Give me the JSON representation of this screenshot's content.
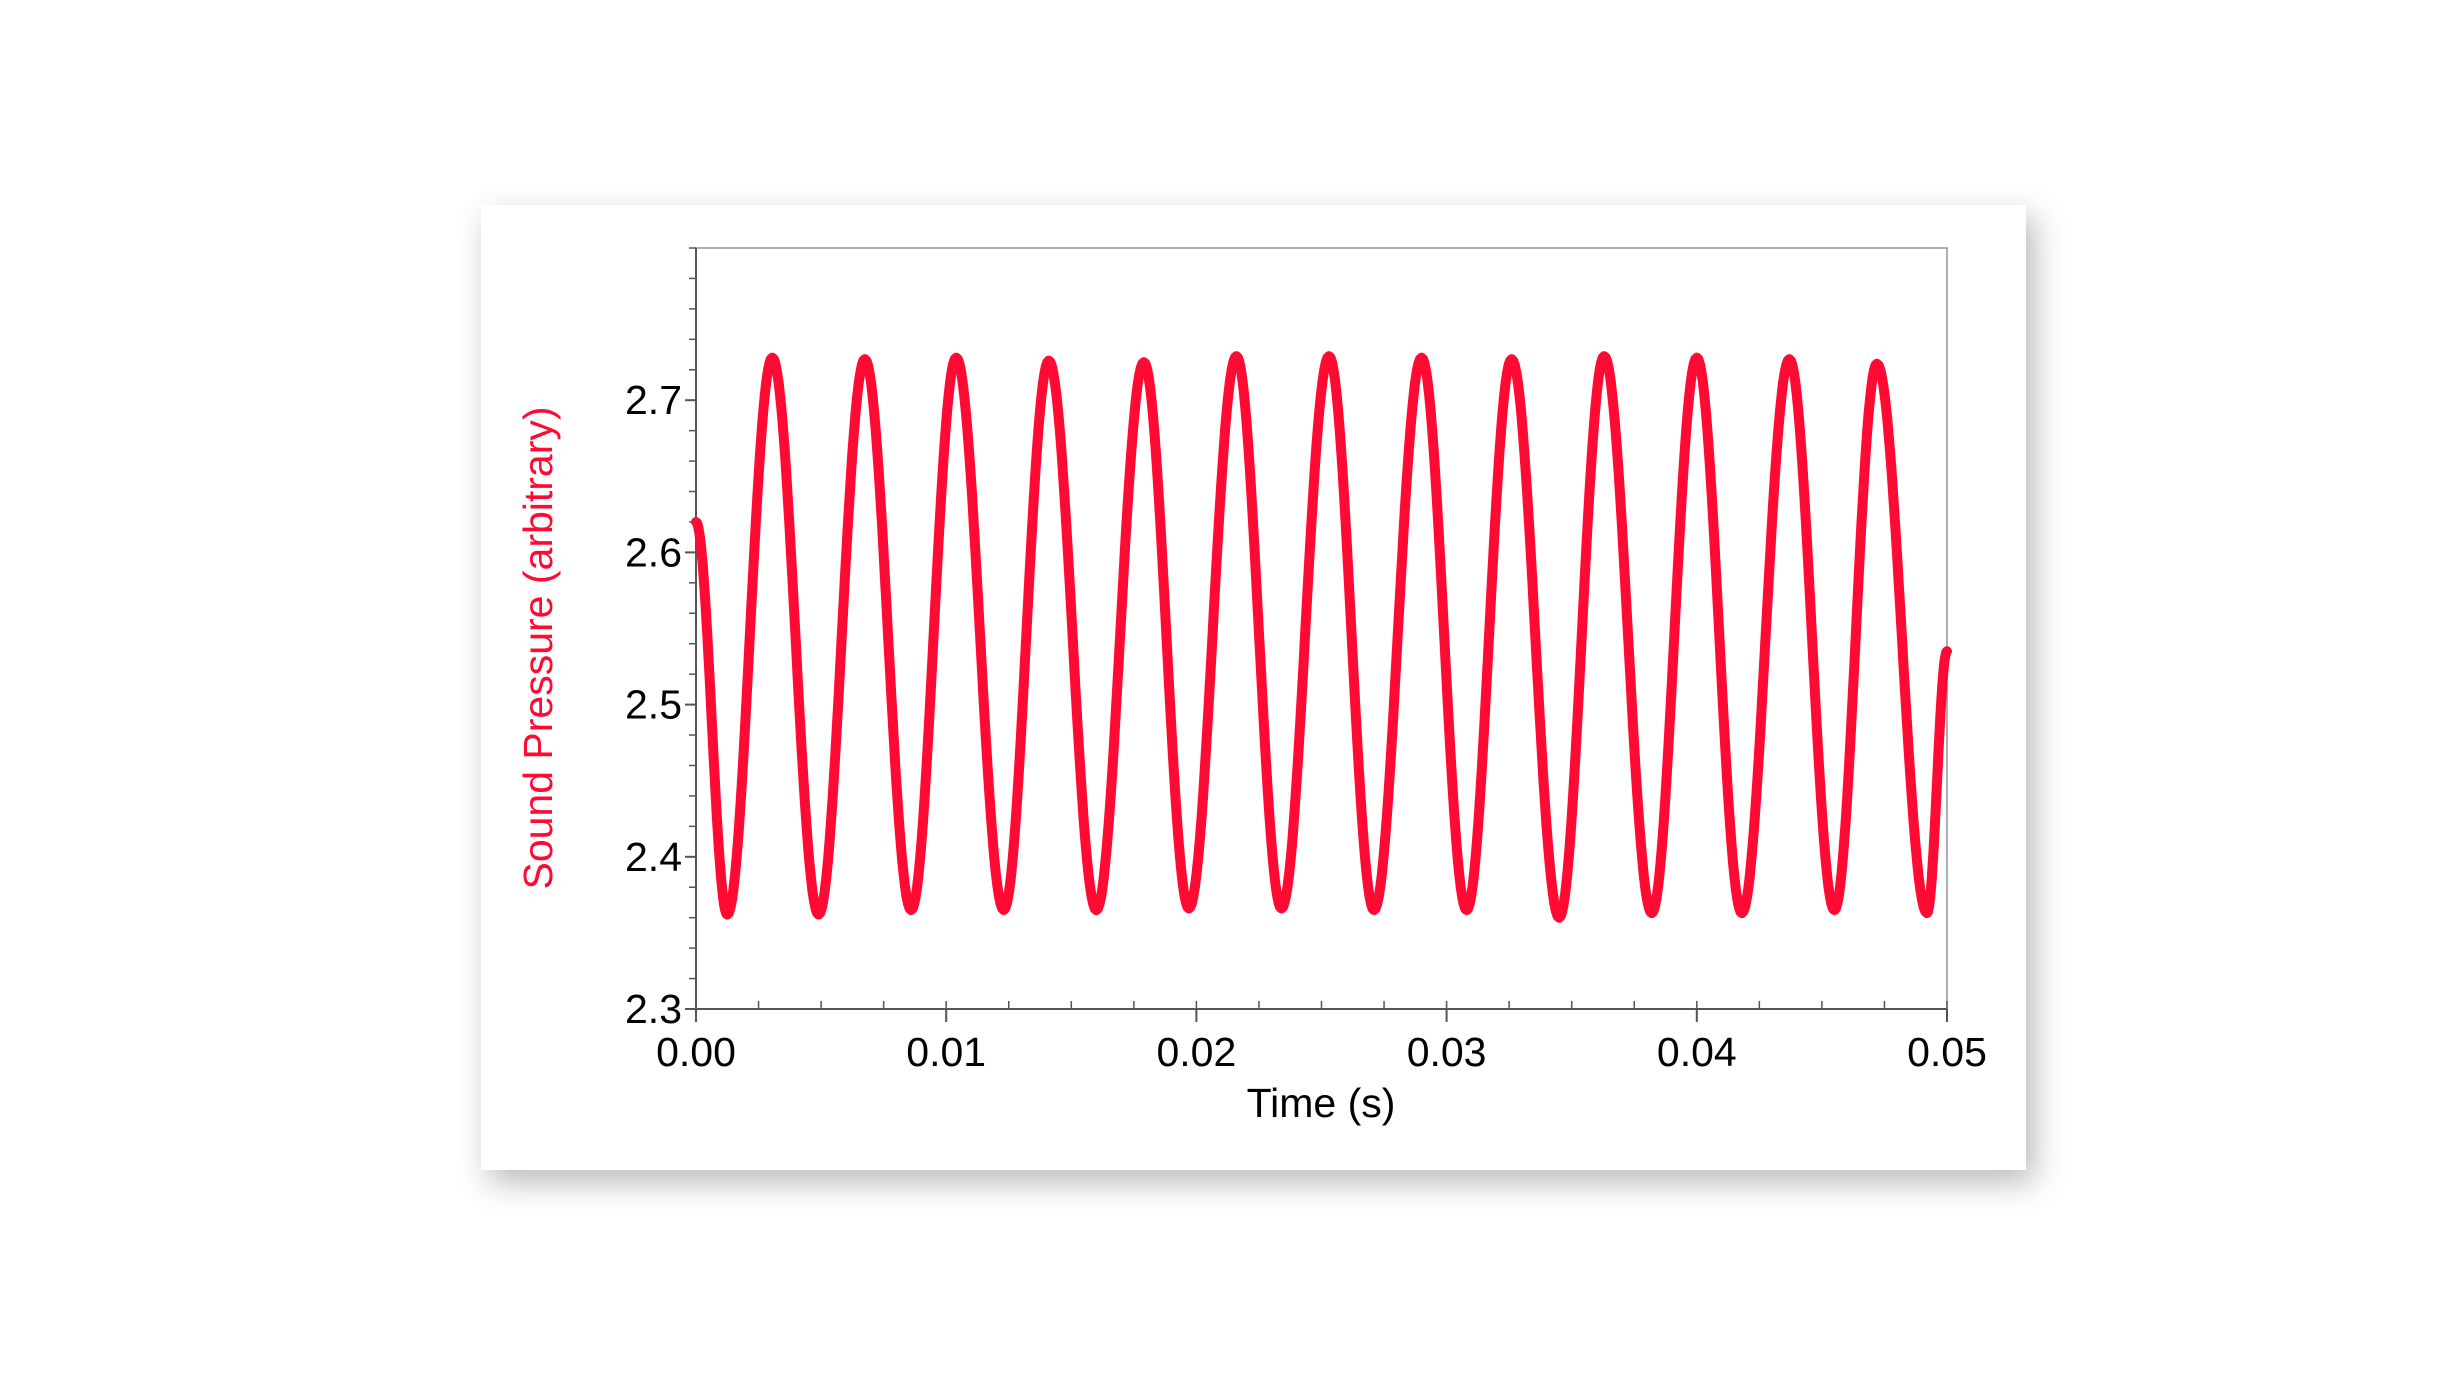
{
  "chart_data": {
    "type": "line",
    "title": "",
    "xlabel": "Time (s)",
    "ylabel": "Sound Pressure (arbitrary)",
    "xlim": [
      0.0,
      0.05
    ],
    "ylim": [
      2.3,
      2.8
    ],
    "x_ticks": [
      "0.00",
      "0.01",
      "0.02",
      "0.03",
      "0.04",
      "0.05"
    ],
    "y_ticks": [
      "2.3",
      "2.4",
      "2.5",
      "2.6",
      "2.7"
    ],
    "grid": false,
    "legend": "none",
    "colors": {
      "series": "#ff0a33",
      "ylabel": "#ff0a33",
      "xlabel": "#000000",
      "axis": "#555555"
    },
    "series": [
      {
        "frequency_hz": 268,
        "mean": 2.545,
        "amplitude": 0.183,
        "x_start": 0.0,
        "x_end": 0.05,
        "y_start": 2.62,
        "y_end": 2.535,
        "peaks": [
          {
            "x": 0.00305,
            "y": 2.728
          },
          {
            "x": 0.00675,
            "y": 2.727
          },
          {
            "x": 0.0104,
            "y": 2.728
          },
          {
            "x": 0.0141,
            "y": 2.726
          },
          {
            "x": 0.0179,
            "y": 2.725
          },
          {
            "x": 0.0216,
            "y": 2.729
          },
          {
            "x": 0.0253,
            "y": 2.729
          },
          {
            "x": 0.029,
            "y": 2.728
          },
          {
            "x": 0.0326,
            "y": 2.727
          },
          {
            "x": 0.0363,
            "y": 2.729
          },
          {
            "x": 0.04,
            "y": 2.728
          },
          {
            "x": 0.0437,
            "y": 2.727
          },
          {
            "x": 0.0472,
            "y": 2.724
          }
        ],
        "troughs": [
          {
            "x": 0.00125,
            "y": 2.362
          },
          {
            "x": 0.0049,
            "y": 2.362
          },
          {
            "x": 0.0086,
            "y": 2.365
          },
          {
            "x": 0.0123,
            "y": 2.365
          },
          {
            "x": 0.016,
            "y": 2.365
          },
          {
            "x": 0.0197,
            "y": 2.366
          },
          {
            "x": 0.0234,
            "y": 2.366
          },
          {
            "x": 0.0271,
            "y": 2.365
          },
          {
            "x": 0.0308,
            "y": 2.365
          },
          {
            "x": 0.0345,
            "y": 2.36
          },
          {
            "x": 0.0382,
            "y": 2.363
          },
          {
            "x": 0.0418,
            "y": 2.363
          },
          {
            "x": 0.0455,
            "y": 2.365
          },
          {
            "x": 0.0492,
            "y": 2.363
          }
        ]
      }
    ]
  }
}
